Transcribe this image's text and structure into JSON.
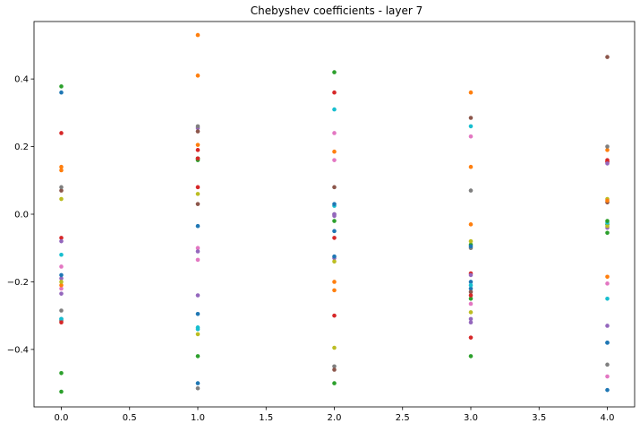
{
  "chart_data": {
    "type": "scatter",
    "title": "Chebyshev coefficients - layer 7",
    "xlabel": "",
    "ylabel": "",
    "xlim": [
      -0.2,
      4.2
    ],
    "ylim": [
      -0.57,
      0.57
    ],
    "grid": false,
    "x_ticks": [
      0.0,
      0.5,
      1.0,
      1.5,
      2.0,
      2.5,
      3.0,
      3.5,
      4.0
    ],
    "x_tick_labels": [
      "0.0",
      "0.5",
      "1.0",
      "1.5",
      "2.0",
      "2.5",
      "3.0",
      "3.5",
      "4.0"
    ],
    "y_ticks": [
      -0.4,
      -0.2,
      0.0,
      0.2,
      0.4
    ],
    "y_tick_labels": [
      "−0.4",
      "−0.2",
      "0.0",
      "0.2",
      "0.4"
    ],
    "x": [
      0,
      1,
      2,
      3,
      4
    ],
    "series": [
      {
        "color": "#1f77b4",
        "values": [
          0.36,
          -0.035,
          -0.05,
          -0.2,
          -0.52
        ]
      },
      {
        "color": "#ff7f0e",
        "values": [
          0.14,
          0.53,
          0.185,
          0.36,
          0.19
        ]
      },
      {
        "color": "#2ca02c",
        "values": [
          0.378,
          0.165,
          0.42,
          -0.09,
          -0.03
        ]
      },
      {
        "color": "#d62728",
        "values": [
          0.24,
          0.19,
          0.36,
          -0.175,
          0.16
        ]
      },
      {
        "color": "#9467bd",
        "values": [
          -0.19,
          -0.24,
          -0.13,
          -0.31,
          -0.33
        ]
      },
      {
        "color": "#8c564b",
        "values": [
          0.07,
          0.03,
          0.08,
          0.285,
          0.465
        ]
      },
      {
        "color": "#e377c2",
        "values": [
          -0.22,
          -0.1,
          0.24,
          0.23,
          -0.205
        ]
      },
      {
        "color": "#7f7f7f",
        "values": [
          -0.285,
          -0.515,
          -0.45,
          0.07,
          0.2
        ]
      },
      {
        "color": "#bcbd22",
        "values": [
          0.045,
          0.06,
          -0.395,
          -0.08,
          0.045
        ]
      },
      {
        "color": "#17becf",
        "values": [
          -0.12,
          -0.335,
          0.31,
          0.26,
          -0.25
        ]
      },
      {
        "color": "#1f77b4",
        "values": [
          -0.31,
          -0.295,
          -0.125,
          -0.22,
          -0.38
        ]
      },
      {
        "color": "#ff7f0e",
        "values": [
          -0.21,
          0.41,
          -0.2,
          0.14,
          -0.185
        ]
      },
      {
        "color": "#2ca02c",
        "values": [
          -0.47,
          -0.42,
          -0.5,
          -0.42,
          -0.055
        ]
      },
      {
        "color": "#d62728",
        "values": [
          -0.07,
          0.08,
          -0.3,
          -0.365,
          0.155
        ]
      },
      {
        "color": "#9467bd",
        "values": [
          -0.235,
          0.255,
          -0.005,
          -0.32,
          -0.04
        ]
      },
      {
        "color": "#8c564b",
        "values": [
          -0.315,
          0.245,
          -0.46,
          -0.23,
          0.035
        ]
      },
      {
        "color": "#e377c2",
        "values": [
          -0.155,
          -0.135,
          0.16,
          -0.265,
          -0.48
        ]
      },
      {
        "color": "#7f7f7f",
        "values": [
          0.08,
          0.26,
          0.0,
          -0.1,
          -0.445
        ]
      },
      {
        "color": "#bcbd22",
        "values": [
          -0.2,
          -0.355,
          -0.14,
          -0.29,
          -0.035
        ]
      },
      {
        "color": "#17becf",
        "values": [
          -0.31,
          -0.34,
          0.025,
          -0.21,
          -0.025
        ]
      },
      {
        "color": "#1f77b4",
        "values": [
          -0.18,
          -0.5,
          0.03,
          -0.095,
          -0.38
        ]
      },
      {
        "color": "#ff7f0e",
        "values": [
          0.13,
          0.205,
          -0.225,
          -0.03,
          0.04
        ]
      },
      {
        "color": "#2ca02c",
        "values": [
          -0.525,
          0.16,
          -0.02,
          -0.25,
          -0.02
        ]
      },
      {
        "color": "#d62728",
        "values": [
          -0.32,
          0.165,
          -0.07,
          -0.24,
          0.155
        ]
      },
      {
        "color": "#9467bd",
        "values": [
          -0.08,
          -0.11,
          0.0,
          -0.18,
          0.15
        ]
      }
    ]
  }
}
